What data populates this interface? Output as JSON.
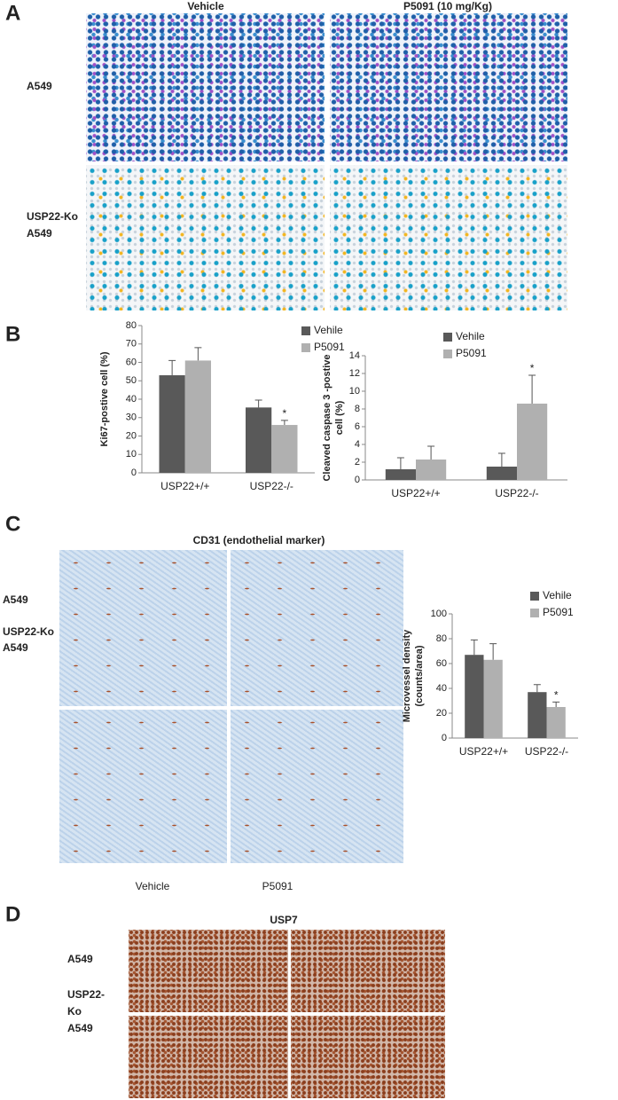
{
  "panels": {
    "A": {
      "label": "A",
      "columns": [
        "Vehicle",
        "P5091 (10 mg/Kg)"
      ],
      "rows": [
        [
          "A549"
        ],
        [
          "USP22-Ko",
          "A549"
        ]
      ]
    },
    "B": {
      "label": "B"
    },
    "C": {
      "label": "C",
      "title": "CD31 (endothelial marker)",
      "rows": [
        [
          "A549"
        ],
        [
          "USP22-Ko",
          "A549"
        ]
      ],
      "columns": [
        "Vehicle",
        "P5091"
      ]
    },
    "D": {
      "label": "D",
      "title": "USP7",
      "rows": [
        [
          "A549"
        ],
        [
          "USP22-",
          "Ko",
          "A549"
        ]
      ]
    }
  },
  "chart_data": [
    {
      "type": "bar",
      "y_label": [
        "Ki67-postive cell (%)"
      ],
      "categories": [
        "USP22+/+",
        "USP22-/-"
      ],
      "series": [
        {
          "name": "Vehile",
          "color": "#595959",
          "values": [
            53,
            35.5
          ],
          "errors": [
            8,
            4
          ]
        },
        {
          "name": "P5091",
          "color": "#b0b0b0",
          "values": [
            61,
            26
          ],
          "errors": [
            7,
            2.5
          ]
        }
      ],
      "annotations": [
        {
          "text": "*",
          "category": "USP22-/-",
          "series": "P5091"
        }
      ],
      "ylim": [
        0,
        80
      ],
      "yticks": [
        0,
        10,
        20,
        30,
        40,
        50,
        60,
        70,
        80
      ]
    },
    {
      "type": "bar",
      "y_label": [
        "Cleaved caspase 3 -postive",
        "cell (%)"
      ],
      "categories": [
        "USP22+/+",
        "USP22-/-"
      ],
      "series": [
        {
          "name": "Vehile",
          "color": "#595959",
          "values": [
            1.2,
            1.5
          ],
          "errors": [
            1.3,
            1.5
          ]
        },
        {
          "name": "P5091",
          "color": "#b0b0b0",
          "values": [
            2.3,
            8.6
          ],
          "errors": [
            1.5,
            3.2
          ]
        }
      ],
      "annotations": [
        {
          "text": "*",
          "category": "USP22-/-",
          "series": "P5091"
        }
      ],
      "ylim": [
        0,
        14
      ],
      "yticks": [
        0,
        2,
        4,
        6,
        8,
        10,
        12,
        14
      ]
    },
    {
      "type": "bar",
      "y_label": [
        "Microvessel density",
        "(counts/area)"
      ],
      "categories": [
        "USP22+/+",
        "USP22-/-"
      ],
      "series": [
        {
          "name": "Vehile",
          "color": "#595959",
          "values": [
            67,
            37
          ],
          "errors": [
            12,
            6
          ]
        },
        {
          "name": "P5091",
          "color": "#b0b0b0",
          "values": [
            63,
            25
          ],
          "errors": [
            13,
            4
          ]
        }
      ],
      "annotations": [
        {
          "text": "*",
          "category": "USP22-/-",
          "series": "P5091"
        }
      ],
      "ylim": [
        0,
        100
      ],
      "yticks": [
        0,
        20,
        40,
        60,
        80,
        100
      ]
    }
  ]
}
